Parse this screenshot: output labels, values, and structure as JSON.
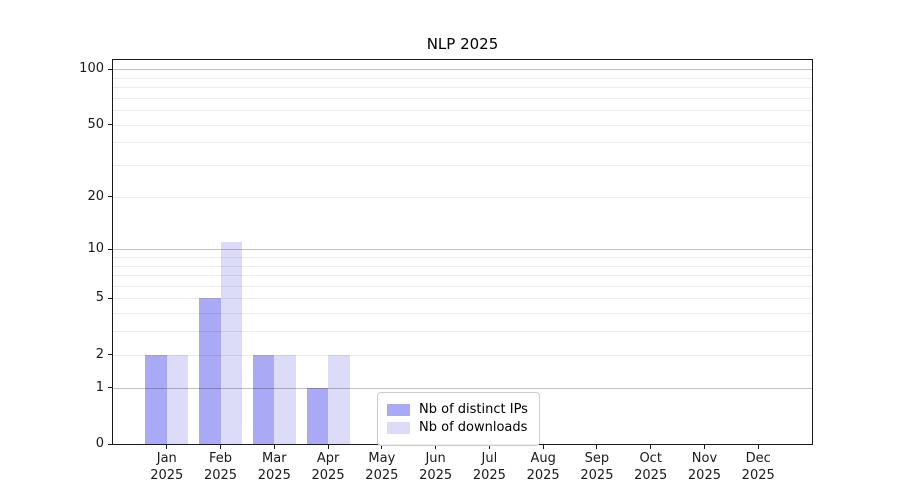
{
  "chart_data": {
    "type": "bar",
    "title": "NLP 2025",
    "categories": [
      {
        "line1": "Jan",
        "line2": "2025"
      },
      {
        "line1": "Feb",
        "line2": "2025"
      },
      {
        "line1": "Mar",
        "line2": "2025"
      },
      {
        "line1": "Apr",
        "line2": "2025"
      },
      {
        "line1": "May",
        "line2": "2025"
      },
      {
        "line1": "Jun",
        "line2": "2025"
      },
      {
        "line1": "Jul",
        "line2": "2025"
      },
      {
        "line1": "Aug",
        "line2": "2025"
      },
      {
        "line1": "Sep",
        "line2": "2025"
      },
      {
        "line1": "Oct",
        "line2": "2025"
      },
      {
        "line1": "Nov",
        "line2": "2025"
      },
      {
        "line1": "Dec",
        "line2": "2025"
      }
    ],
    "series": [
      {
        "name": "Nb of distinct IPs",
        "color": "#a9a9f5",
        "values": [
          2,
          5,
          2,
          1,
          0,
          0,
          0,
          0,
          0,
          0,
          0,
          0
        ]
      },
      {
        "name": "Nb of downloads",
        "color": "#dcdcf9",
        "values": [
          2,
          11,
          2,
          2,
          0,
          0,
          0,
          0,
          0,
          0,
          0,
          0
        ]
      }
    ],
    "yscale": "log10(value+1)",
    "ylim": [
      0,
      112
    ],
    "yticks": [
      0,
      1,
      2,
      5,
      10,
      20,
      50,
      100
    ],
    "ytick_labels": [
      "0",
      "1",
      "2",
      "5",
      "10",
      "20",
      "50",
      "100"
    ],
    "major_gridlines": [
      1,
      10,
      100
    ],
    "minor_gridlines": [
      2,
      3,
      4,
      5,
      6,
      7,
      8,
      9,
      20,
      30,
      40,
      50,
      60,
      70,
      80,
      90
    ],
    "grid": true,
    "legend_position": "lower center"
  }
}
